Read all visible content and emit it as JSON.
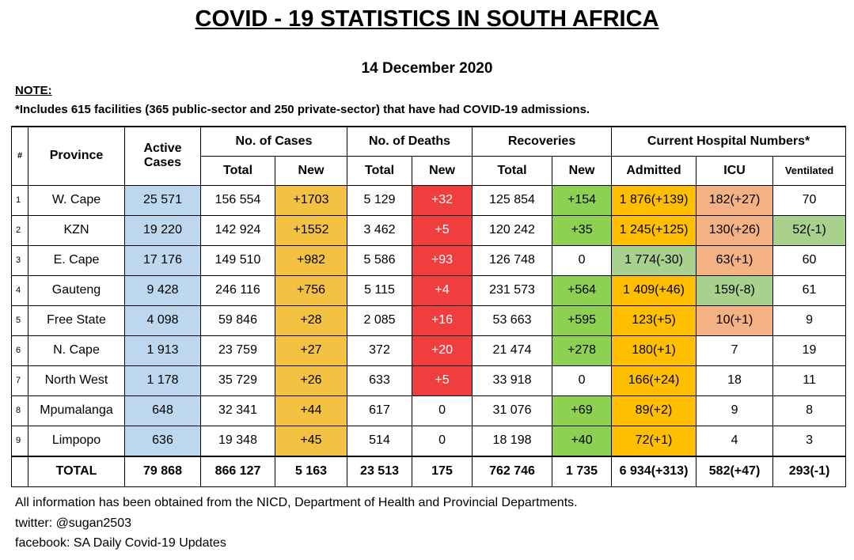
{
  "title": "COVID - 19 STATISTICS IN SOUTH AFRICA",
  "date": "14 December 2020",
  "note": {
    "heading": "NOTE:",
    "text": "*Includes 615 facilities (365 public-sector and 250 private-sector) that have had COVID-19 admissions."
  },
  "headers": {
    "hash": "#",
    "province": "Province",
    "active_line1": "Active",
    "active_line2": "Cases",
    "cases": "No. of Cases",
    "deaths": "No. of Deaths",
    "recoveries": "Recoveries",
    "hospital": "Current Hospital Numbers*",
    "total": "Total",
    "new": "New",
    "admitted": "Admitted",
    "icu": "ICU",
    "ventilated": "Ventilated"
  },
  "rows": [
    {
      "num": "1",
      "province": "W. Cape",
      "active": "25 571",
      "cases_total": "156 554",
      "cases_new": "+1703",
      "deaths_total": "5 129",
      "deaths_new": "+32",
      "rec_total": "125 854",
      "rec_new": "+154",
      "admitted": "1 876(+139)",
      "icu": "182(+27)",
      "ventilated": "70"
    },
    {
      "num": "2",
      "province": "KZN",
      "active": "19 220",
      "cases_total": "142 924",
      "cases_new": "+1552",
      "deaths_total": "3 462",
      "deaths_new": "+5",
      "rec_total": "120 242",
      "rec_new": "+35",
      "admitted": "1 245(+125)",
      "icu": "130(+26)",
      "ventilated": "52(-1)"
    },
    {
      "num": "3",
      "province": "E. Cape",
      "active": "17 176",
      "cases_total": "149 510",
      "cases_new": "+982",
      "deaths_total": "5 586",
      "deaths_new": "+93",
      "rec_total": "126 748",
      "rec_new": "0",
      "admitted": "1 774(-30)",
      "icu": "63(+1)",
      "ventilated": "60"
    },
    {
      "num": "4",
      "province": "Gauteng",
      "active": "9 428",
      "cases_total": "246 116",
      "cases_new": "+756",
      "deaths_total": "5 115",
      "deaths_new": "+4",
      "rec_total": "231 573",
      "rec_new": "+564",
      "admitted": "1 409(+46)",
      "icu": "159(-8)",
      "ventilated": "61"
    },
    {
      "num": "5",
      "province": "Free State",
      "active": "4 098",
      "cases_total": "59 846",
      "cases_new": "+28",
      "deaths_total": "2 085",
      "deaths_new": "+16",
      "rec_total": "53 663",
      "rec_new": "+595",
      "admitted": "123(+5)",
      "icu": "10(+1)",
      "ventilated": "9"
    },
    {
      "num": "6",
      "province": "N. Cape",
      "active": "1 913",
      "cases_total": "23 759",
      "cases_new": "+27",
      "deaths_total": "372",
      "deaths_new": "+20",
      "rec_total": "21 474",
      "rec_new": "+278",
      "admitted": "180(+1)",
      "icu": "7",
      "ventilated": "19"
    },
    {
      "num": "7",
      "province": "North West",
      "active": "1 178",
      "cases_total": "35 729",
      "cases_new": "+26",
      "deaths_total": "633",
      "deaths_new": "+5",
      "rec_total": "33 918",
      "rec_new": "0",
      "admitted": "166(+24)",
      "icu": "18",
      "ventilated": "11"
    },
    {
      "num": "8",
      "province": "Mpumalanga",
      "active": "648",
      "cases_total": "32 341",
      "cases_new": "+44",
      "deaths_total": "617",
      "deaths_new": "0",
      "rec_total": "31 076",
      "rec_new": "+69",
      "admitted": "89(+2)",
      "icu": "9",
      "ventilated": "8"
    },
    {
      "num": "9",
      "province": "Limpopo",
      "active": "636",
      "cases_total": "19 348",
      "cases_new": "+45",
      "deaths_total": "514",
      "deaths_new": "0",
      "rec_total": "18 198",
      "rec_new": "+40",
      "admitted": "72(+1)",
      "icu": "4",
      "ventilated": "3"
    }
  ],
  "total": {
    "label": "TOTAL",
    "active": "79 868",
    "cases_total": "866 127",
    "cases_new": "5 163",
    "deaths_total": "23 513",
    "deaths_new": "175",
    "rec_total": "762 746",
    "rec_new": "1 735",
    "admitted": "6 934(+313)",
    "icu": "582(+47)",
    "ventilated": "293(-1)"
  },
  "colors": {
    "active_cases": "#bdd7ee",
    "cases_new": "#f4c242",
    "deaths_new": "#f03e3e",
    "rec_new": "#8ed152",
    "admitted_up": "#ffbf00",
    "admitted_down": "#a9d18e",
    "icu_up": "#f4b183",
    "icu_down": "#a9d18e",
    "ventilated_down": "#a9d18e"
  },
  "footer": {
    "line1": "All information has been obtained from the NICD, Department of Health and Provincial Departments.",
    "line2": "twitter: @sugan2503",
    "line3": "facebook: SA Daily Covid-19 Updates"
  }
}
